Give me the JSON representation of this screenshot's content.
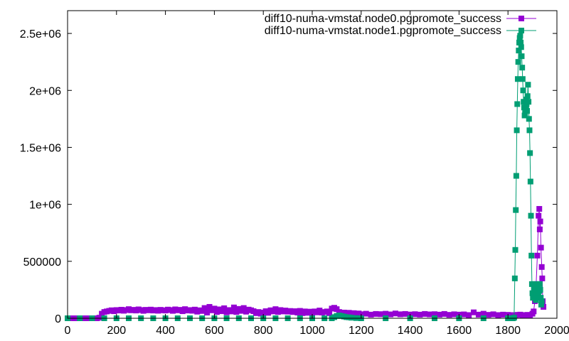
{
  "chart_data": {
    "type": "line",
    "title": "",
    "xlabel": "",
    "ylabel": "",
    "xlim": [
      0,
      2000
    ],
    "ylim": [
      0,
      2700000
    ],
    "x_ticks": [
      {
        "value": 0,
        "label": "0"
      },
      {
        "value": 200,
        "label": "200"
      },
      {
        "value": 400,
        "label": "400"
      },
      {
        "value": 600,
        "label": "600"
      },
      {
        "value": 800,
        "label": "800"
      },
      {
        "value": 1000,
        "label": "1000"
      },
      {
        "value": 1200,
        "label": "1200"
      },
      {
        "value": 1400,
        "label": "1400"
      },
      {
        "value": 1600,
        "label": "1600"
      },
      {
        "value": 1800,
        "label": "1800"
      },
      {
        "value": 2000,
        "label": "2000"
      }
    ],
    "y_ticks": [
      {
        "value": 0,
        "label": "0"
      },
      {
        "value": 500000,
        "label": "500000"
      },
      {
        "value": 1000000,
        "label": "1e+06"
      },
      {
        "value": 1500000,
        "label": "1.5e+06"
      },
      {
        "value": 2000000,
        "label": "2e+06"
      },
      {
        "value": 2500000,
        "label": "2.5e+06"
      }
    ],
    "grid": false,
    "legend_position": "top-right",
    "series": [
      {
        "name": "diff10-numa-vmstat.node0.pgpromote_success",
        "color": "#9400d3",
        "marker": "square",
        "points": [
          [
            0,
            0
          ],
          [
            20,
            0
          ],
          [
            40,
            0
          ],
          [
            60,
            0
          ],
          [
            80,
            0
          ],
          [
            100,
            0
          ],
          [
            120,
            0
          ],
          [
            130,
            5000
          ],
          [
            140,
            40000
          ],
          [
            150,
            55000
          ],
          [
            160,
            60000
          ],
          [
            170,
            65000
          ],
          [
            180,
            70000
          ],
          [
            190,
            62000
          ],
          [
            200,
            72000
          ],
          [
            210,
            68000
          ],
          [
            220,
            75000
          ],
          [
            230,
            66000
          ],
          [
            240,
            72000
          ],
          [
            250,
            80000
          ],
          [
            260,
            70000
          ],
          [
            270,
            74000
          ],
          [
            280,
            68000
          ],
          [
            290,
            78000
          ],
          [
            300,
            72000
          ],
          [
            310,
            65000
          ],
          [
            320,
            74000
          ],
          [
            330,
            70000
          ],
          [
            340,
            76000
          ],
          [
            350,
            68000
          ],
          [
            360,
            72000
          ],
          [
            370,
            66000
          ],
          [
            380,
            74000
          ],
          [
            390,
            70000
          ],
          [
            400,
            68000
          ],
          [
            410,
            76000
          ],
          [
            420,
            72000
          ],
          [
            430,
            65000
          ],
          [
            440,
            78000
          ],
          [
            450,
            70000
          ],
          [
            460,
            74000
          ],
          [
            470,
            62000
          ],
          [
            480,
            80000
          ],
          [
            490,
            68000
          ],
          [
            500,
            72000
          ],
          [
            510,
            66000
          ],
          [
            520,
            76000
          ],
          [
            530,
            58000
          ],
          [
            540,
            70000
          ],
          [
            550,
            64000
          ],
          [
            560,
            90000
          ],
          [
            570,
            50000
          ],
          [
            580,
            100000
          ],
          [
            590,
            70000
          ],
          [
            600,
            85000
          ],
          [
            610,
            55000
          ],
          [
            620,
            78000
          ],
          [
            630,
            62000
          ],
          [
            640,
            88000
          ],
          [
            650,
            52000
          ],
          [
            660,
            72000
          ],
          [
            670,
            60000
          ],
          [
            680,
            95000
          ],
          [
            690,
            55000
          ],
          [
            700,
            82000
          ],
          [
            710,
            65000
          ],
          [
            720,
            90000
          ],
          [
            730,
            58000
          ],
          [
            740,
            76000
          ],
          [
            750,
            70000
          ],
          [
            760,
            62000
          ],
          [
            770,
            45000
          ],
          [
            780,
            55000
          ],
          [
            790,
            40000
          ],
          [
            800,
            50000
          ],
          [
            810,
            62000
          ],
          [
            820,
            48000
          ],
          [
            830,
            70000
          ],
          [
            840,
            60000
          ],
          [
            850,
            80000
          ],
          [
            860,
            55000
          ],
          [
            870,
            72000
          ],
          [
            880,
            60000
          ],
          [
            890,
            68000
          ],
          [
            900,
            58000
          ],
          [
            910,
            64000
          ],
          [
            920,
            55000
          ],
          [
            930,
            62000
          ],
          [
            940,
            50000
          ],
          [
            950,
            65000
          ],
          [
            960,
            45000
          ],
          [
            970,
            60000
          ],
          [
            980,
            48000
          ],
          [
            990,
            58000
          ],
          [
            1000,
            42000
          ],
          [
            1010,
            60000
          ],
          [
            1020,
            52000
          ],
          [
            1030,
            68000
          ],
          [
            1040,
            50000
          ],
          [
            1050,
            55000
          ],
          [
            1060,
            60000
          ],
          [
            1070,
            45000
          ],
          [
            1080,
            85000
          ],
          [
            1090,
            92000
          ],
          [
            1100,
            80000
          ],
          [
            1110,
            55000
          ],
          [
            1120,
            45000
          ],
          [
            1130,
            50000
          ],
          [
            1140,
            40000
          ],
          [
            1150,
            48000
          ],
          [
            1160,
            42000
          ],
          [
            1170,
            45000
          ],
          [
            1180,
            38000
          ],
          [
            1190,
            42000
          ],
          [
            1200,
            35000
          ],
          [
            1220,
            40000
          ],
          [
            1240,
            32000
          ],
          [
            1260,
            38000
          ],
          [
            1280,
            36000
          ],
          [
            1300,
            40000
          ],
          [
            1320,
            34000
          ],
          [
            1340,
            42000
          ],
          [
            1360,
            35000
          ],
          [
            1380,
            38000
          ],
          [
            1400,
            33000
          ],
          [
            1420,
            36000
          ],
          [
            1440,
            32000
          ],
          [
            1460,
            38000
          ],
          [
            1480,
            34000
          ],
          [
            1500,
            36000
          ],
          [
            1520,
            32000
          ],
          [
            1540,
            38000
          ],
          [
            1560,
            30000
          ],
          [
            1580,
            35000
          ],
          [
            1600,
            32000
          ],
          [
            1620,
            34000
          ],
          [
            1640,
            28000
          ],
          [
            1660,
            52000
          ],
          [
            1680,
            32000
          ],
          [
            1700,
            40000
          ],
          [
            1720,
            30000
          ],
          [
            1740,
            35000
          ],
          [
            1760,
            28000
          ],
          [
            1780,
            32000
          ],
          [
            1800,
            30000
          ],
          [
            1820,
            28000
          ],
          [
            1830,
            25000
          ],
          [
            1840,
            30000
          ],
          [
            1850,
            32000
          ],
          [
            1860,
            28000
          ],
          [
            1870,
            25000
          ],
          [
            1880,
            30000
          ],
          [
            1890,
            22000
          ],
          [
            1900,
            40000
          ],
          [
            1905,
            60000
          ],
          [
            1910,
            150000
          ],
          [
            1915,
            300000
          ],
          [
            1920,
            550000
          ],
          [
            1925,
            900000
          ],
          [
            1928,
            960000
          ],
          [
            1930,
            780000
          ],
          [
            1932,
            850000
          ],
          [
            1935,
            620000
          ],
          [
            1938,
            450000
          ],
          [
            1940,
            350000
          ],
          [
            1942,
            150000
          ],
          [
            1945,
            100000
          ]
        ]
      },
      {
        "name": "diff10-numa-vmstat.node1.pgpromote_success",
        "color": "#009e73",
        "marker": "square",
        "points": [
          [
            0,
            0
          ],
          [
            50,
            0
          ],
          [
            100,
            0
          ],
          [
            150,
            0
          ],
          [
            200,
            0
          ],
          [
            250,
            0
          ],
          [
            300,
            0
          ],
          [
            350,
            0
          ],
          [
            400,
            0
          ],
          [
            450,
            0
          ],
          [
            500,
            0
          ],
          [
            550,
            0
          ],
          [
            600,
            0
          ],
          [
            650,
            0
          ],
          [
            700,
            0
          ],
          [
            750,
            0
          ],
          [
            800,
            0
          ],
          [
            850,
            0
          ],
          [
            900,
            0
          ],
          [
            950,
            0
          ],
          [
            1000,
            0
          ],
          [
            1050,
            0
          ],
          [
            1080,
            0
          ],
          [
            1090,
            10000
          ],
          [
            1100,
            20000
          ],
          [
            1110,
            25000
          ],
          [
            1120,
            20000
          ],
          [
            1130,
            15000
          ],
          [
            1140,
            10000
          ],
          [
            1150,
            8000
          ],
          [
            1160,
            5000
          ],
          [
            1180,
            2000
          ],
          [
            1200,
            0
          ],
          [
            1300,
            0
          ],
          [
            1400,
            0
          ],
          [
            1500,
            0
          ],
          [
            1600,
            0
          ],
          [
            1700,
            0
          ],
          [
            1800,
            0
          ],
          [
            1820,
            0
          ],
          [
            1825,
            5000
          ],
          [
            1828,
            350000
          ],
          [
            1830,
            600000
          ],
          [
            1832,
            950000
          ],
          [
            1834,
            1250000
          ],
          [
            1836,
            1650000
          ],
          [
            1838,
            1880000
          ],
          [
            1840,
            2100000
          ],
          [
            1842,
            2250000
          ],
          [
            1844,
            2350000
          ],
          [
            1846,
            2420000
          ],
          [
            1848,
            2460000
          ],
          [
            1850,
            2480000
          ],
          [
            1852,
            2420000
          ],
          [
            1854,
            2380000
          ],
          [
            1856,
            2300000
          ],
          [
            1858,
            2200000
          ],
          [
            1860,
            2100000
          ],
          [
            1862,
            2000000
          ],
          [
            1864,
            1900000
          ],
          [
            1866,
            1850000
          ],
          [
            1868,
            1780000
          ],
          [
            1870,
            1800000
          ],
          [
            1872,
            1850000
          ],
          [
            1874,
            1920000
          ],
          [
            1876,
            1880000
          ],
          [
            1878,
            1820000
          ],
          [
            1880,
            1950000
          ],
          [
            1882,
            2050000
          ],
          [
            1884,
            1900000
          ],
          [
            1886,
            1750000
          ],
          [
            1888,
            1650000
          ],
          [
            1890,
            1450000
          ],
          [
            1892,
            1200000
          ],
          [
            1894,
            900000
          ],
          [
            1896,
            550000
          ],
          [
            1898,
            300000
          ],
          [
            1900,
            220000
          ],
          [
            1902,
            180000
          ],
          [
            1904,
            200000
          ],
          [
            1906,
            260000
          ],
          [
            1908,
            300000
          ],
          [
            1910,
            240000
          ],
          [
            1912,
            180000
          ],
          [
            1914,
            160000
          ],
          [
            1916,
            200000
          ],
          [
            1918,
            260000
          ],
          [
            1920,
            300000
          ],
          [
            1922,
            280000
          ],
          [
            1924,
            220000
          ],
          [
            1926,
            180000
          ],
          [
            1928,
            240000
          ],
          [
            1930,
            300000
          ],
          [
            1932,
            250000
          ],
          [
            1934,
            180000
          ],
          [
            1936,
            120000
          ],
          [
            1938,
            150000
          ]
        ]
      }
    ]
  }
}
